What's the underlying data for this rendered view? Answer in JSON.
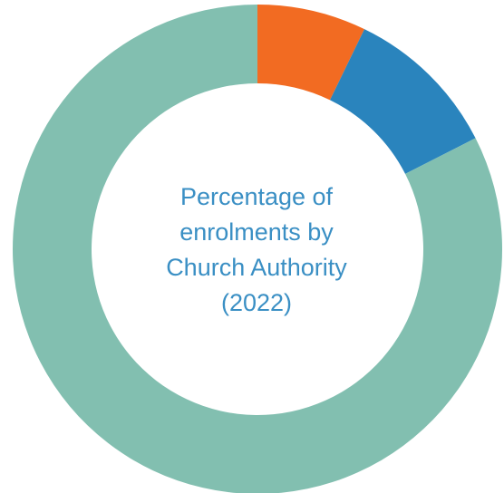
{
  "chart_data": {
    "type": "pie",
    "title": "Percentage of\nenrolments by\nChurch Authority\n(2022)",
    "categories": [
      "",
      "",
      ""
    ],
    "values": [
      7.2,
      10.3,
      82.5
    ],
    "colors": [
      "#f26b22",
      "#2a84bd",
      "#82bfb0"
    ],
    "donut": true,
    "legend": "none"
  }
}
